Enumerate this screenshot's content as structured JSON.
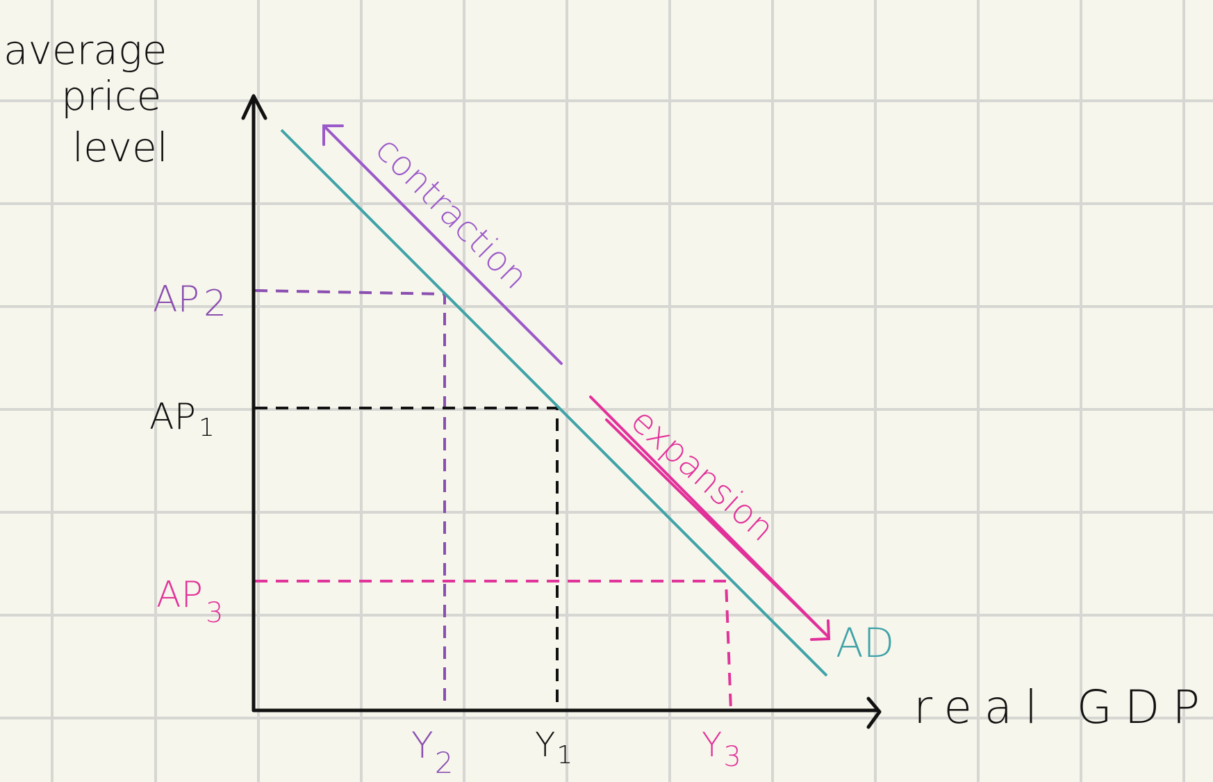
{
  "diagram": {
    "title": "",
    "y_axis_label_lines": [
      "average",
      "price",
      "level"
    ],
    "x_axis_label": "real GDP",
    "curve_label": "AD",
    "movements": {
      "contraction": "contraction",
      "expansion": "expansion"
    },
    "price_levels": [
      {
        "id": "ap2",
        "base": "AP",
        "sub": "2",
        "color": "#8a4fb0"
      },
      {
        "id": "ap1",
        "base": "AP",
        "sub": "1",
        "color": "#111111"
      },
      {
        "id": "ap3",
        "base": "AP",
        "sub": "3",
        "color": "#e0349a"
      }
    ],
    "output_levels": [
      {
        "id": "y2",
        "base": "Y",
        "sub": "2",
        "color": "#8a4fb0"
      },
      {
        "id": "y1",
        "base": "Y",
        "sub": "1",
        "color": "#111111"
      },
      {
        "id": "y3",
        "base": "Y",
        "sub": "3",
        "color": "#e0349a"
      }
    ],
    "colors": {
      "ad_curve": "#3fa3a8",
      "contraction": "#9b5ac9",
      "expansion": "#e2309a",
      "axes": "#111111",
      "grid": "#d6d6d2",
      "background": "#f7f6ec"
    }
  }
}
